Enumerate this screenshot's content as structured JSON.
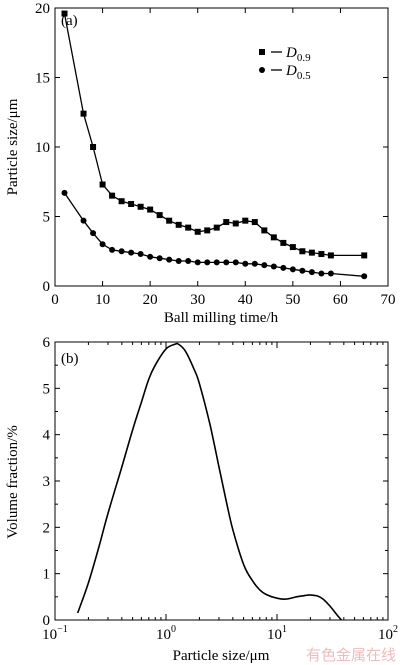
{
  "chart_data": [
    {
      "type": "line",
      "panel_label": "(a)",
      "xlabel": "Ball milling time/h",
      "ylabel": "Particle size/μm",
      "xlim": [
        0,
        70
      ],
      "ylim": [
        0,
        20
      ],
      "xticks": [
        0,
        10,
        20,
        30,
        40,
        50,
        60,
        70
      ],
      "yticks": [
        0,
        5,
        10,
        15,
        20
      ],
      "legend_position": "top-right",
      "series": [
        {
          "name": "D0.9",
          "name_main": "D",
          "name_sub": "0.9",
          "marker": "square",
          "x": [
            2,
            6,
            8,
            10,
            12,
            14,
            16,
            18,
            20,
            22,
            24,
            26,
            28,
            30,
            32,
            34,
            36,
            38,
            40,
            42,
            44,
            46,
            48,
            50,
            52,
            54,
            56,
            58,
            65
          ],
          "y": [
            19.6,
            12.4,
            10.0,
            7.3,
            6.5,
            6.1,
            5.9,
            5.7,
            5.5,
            5.1,
            4.7,
            4.4,
            4.2,
            3.9,
            4.0,
            4.2,
            4.6,
            4.5,
            4.7,
            4.6,
            4.0,
            3.5,
            3.1,
            2.8,
            2.5,
            2.4,
            2.3,
            2.2,
            2.2
          ]
        },
        {
          "name": "D0.5",
          "name_main": "D",
          "name_sub": "0.5",
          "marker": "circle",
          "x": [
            2,
            6,
            8,
            10,
            12,
            14,
            16,
            18,
            20,
            22,
            24,
            26,
            28,
            30,
            32,
            34,
            36,
            38,
            40,
            42,
            44,
            46,
            48,
            50,
            52,
            54,
            56,
            58,
            65
          ],
          "y": [
            6.7,
            4.7,
            3.8,
            3.0,
            2.6,
            2.5,
            2.4,
            2.3,
            2.1,
            2.0,
            1.9,
            1.8,
            1.8,
            1.7,
            1.7,
            1.7,
            1.7,
            1.7,
            1.6,
            1.6,
            1.5,
            1.4,
            1.3,
            1.2,
            1.1,
            1.0,
            0.9,
            0.9,
            0.7
          ]
        }
      ]
    },
    {
      "type": "line",
      "panel_label": "(b)",
      "xlabel": "Particle size/μm",
      "ylabel": "Volume fraction/%",
      "xscale": "log",
      "xlim": [
        0.1,
        100
      ],
      "ylim": [
        0,
        6
      ],
      "xticks": [
        0.1,
        1,
        10,
        100
      ],
      "xtick_labels": [
        {
          "base": "10",
          "exp": "−1"
        },
        {
          "base": "10",
          "exp": "0"
        },
        {
          "base": "10",
          "exp": "1"
        },
        {
          "base": "10",
          "exp": "2"
        }
      ],
      "yticks": [
        0,
        1,
        2,
        3,
        4,
        5,
        6
      ],
      "series": [
        {
          "x": [
            0.16,
            0.2,
            0.25,
            0.3,
            0.4,
            0.5,
            0.6,
            0.7,
            0.8,
            1.0,
            1.2,
            1.3,
            1.5,
            1.8,
            2.0,
            2.5,
            3.0,
            3.5,
            4.0,
            5.0,
            6.0,
            7.0,
            8.0,
            10.0,
            12.0,
            15.0,
            18.0,
            20.0,
            23.0,
            26.0,
            30.0,
            35.0,
            38.0
          ],
          "y": [
            0.15,
            0.8,
            1.6,
            2.3,
            3.3,
            4.1,
            4.7,
            5.2,
            5.5,
            5.85,
            5.95,
            5.95,
            5.8,
            5.4,
            5.1,
            4.2,
            3.3,
            2.55,
            1.95,
            1.2,
            0.85,
            0.65,
            0.55,
            0.47,
            0.45,
            0.5,
            0.53,
            0.54,
            0.52,
            0.45,
            0.3,
            0.1,
            0.0
          ]
        }
      ]
    }
  ],
  "watermark": "有色金属在线"
}
